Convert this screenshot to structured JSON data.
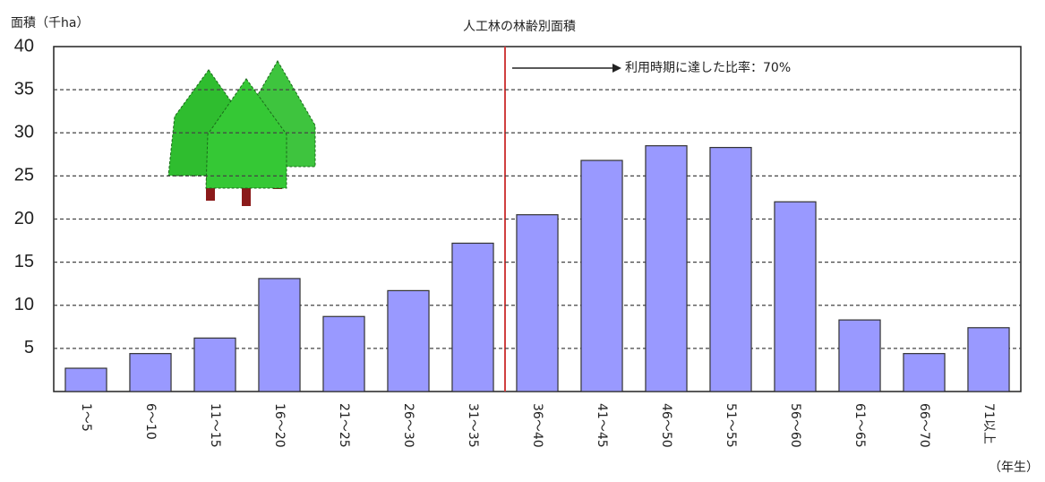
{
  "chart_data": {
    "type": "bar",
    "title": "人工林の林齢別面積",
    "y_label": "面積（千ha）",
    "x_label": "（年生）",
    "annotation": "利用時期に達した比率：70%",
    "categories": [
      "1～5",
      "6～10",
      "11～15",
      "16～20",
      "21～25",
      "26～30",
      "31～35",
      "36～40",
      "41～45",
      "46～50",
      "51～55",
      "56～60",
      "61～65",
      "66～70",
      "71以上"
    ],
    "values": [
      2.7,
      4.4,
      6.2,
      13.1,
      8.7,
      11.7,
      17.2,
      20.5,
      26.8,
      28.5,
      28.3,
      22.0,
      8.3,
      4.4,
      7.4
    ],
    "color": "#9999ff",
    "ylim": [
      0,
      40
    ],
    "yticks": [
      5,
      10,
      15,
      20,
      25,
      30,
      35,
      40
    ],
    "grid": true
  }
}
